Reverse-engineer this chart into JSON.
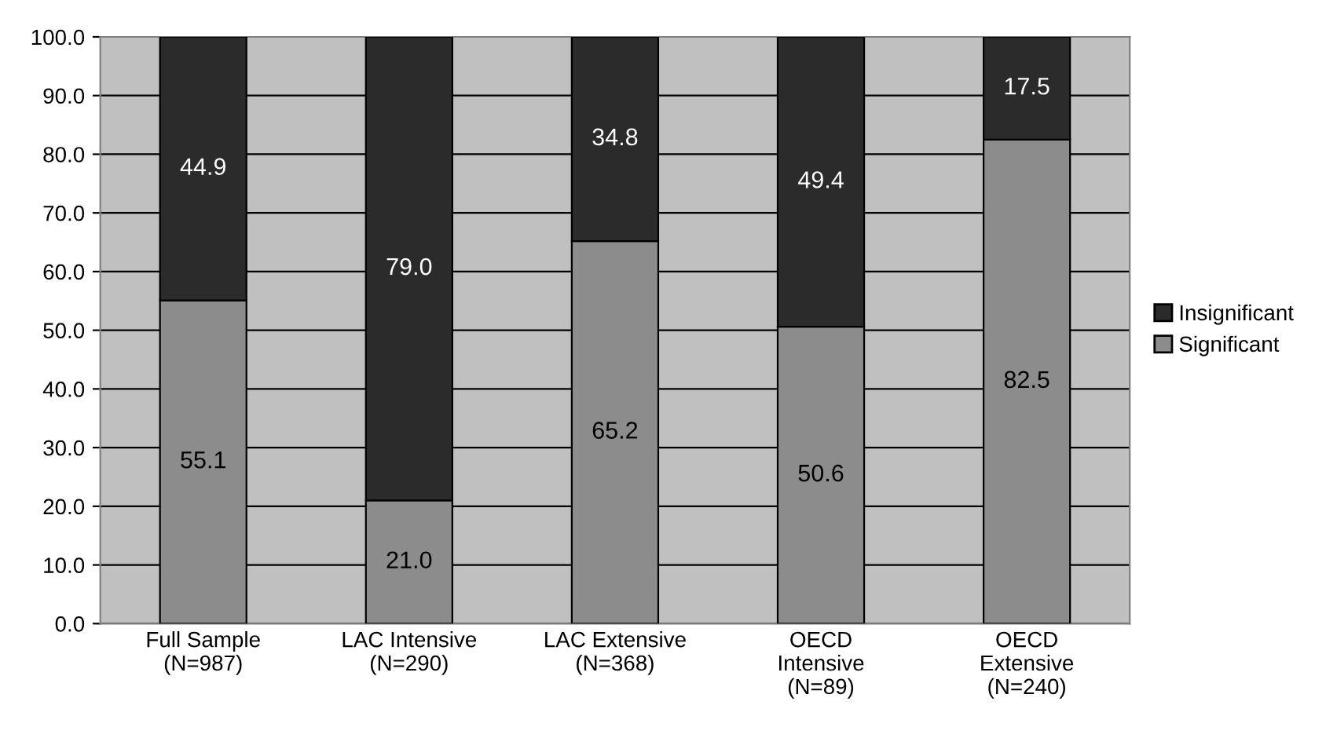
{
  "chart_data": {
    "type": "bar",
    "stacked": true,
    "categories": [
      "Full Sample\n(N=987)",
      "LAC Intensive\n(N=290)",
      "LAC Extensive\n(N=368)",
      "OECD\nIntensive\n(N=89)",
      "OECD\nExtensive\n(N=240)"
    ],
    "series": [
      {
        "name": "Significant",
        "color": "#8c8c8c",
        "values": [
          55.1,
          21.0,
          65.2,
          50.6,
          82.5
        ],
        "value_labels": [
          "55.1",
          "21.0",
          "65.2",
          "50.6",
          "82.5"
        ]
      },
      {
        "name": "Insignificant",
        "color": "#2b2b2b",
        "values": [
          44.9,
          79.0,
          34.8,
          49.4,
          17.5
        ],
        "value_labels": [
          "44.9",
          "79.0",
          "34.8",
          "49.4",
          "17.5"
        ]
      }
    ],
    "ylim": [
      0,
      100
    ],
    "yticks": [
      {
        "value": 0,
        "label": "0.0"
      },
      {
        "value": 10,
        "label": "10.0"
      },
      {
        "value": 20,
        "label": "20.0"
      },
      {
        "value": 30,
        "label": "30.0"
      },
      {
        "value": 40,
        "label": "40.0"
      },
      {
        "value": 50,
        "label": "50.0"
      },
      {
        "value": 60,
        "label": "60.0"
      },
      {
        "value": 70,
        "label": "70.0"
      },
      {
        "value": 80,
        "label": "80.0"
      },
      {
        "value": 90,
        "label": "90.0"
      },
      {
        "value": 100,
        "label": "100.0"
      }
    ],
    "grid": "y",
    "legend": "right"
  }
}
